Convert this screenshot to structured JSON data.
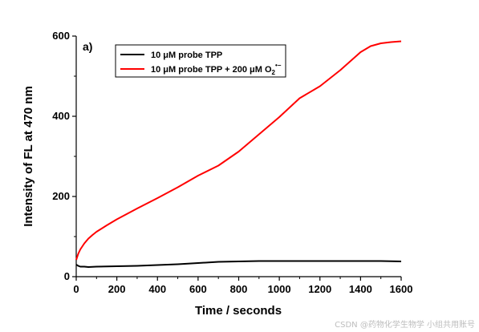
{
  "chart_data": {
    "type": "line",
    "panel_label": "a)",
    "xlabel": "Time / seconds",
    "ylabel": "Intensity of FL at 470 nm",
    "xlim": [
      0,
      1600
    ],
    "ylim": [
      0,
      600
    ],
    "x_ticks": [
      0,
      200,
      400,
      600,
      800,
      1000,
      1200,
      1400,
      1600
    ],
    "y_ticks": [
      0,
      200,
      400,
      600
    ],
    "grid": false,
    "legend_position": "top-left",
    "series": [
      {
        "name": "10 μM probe TPP",
        "color": "#000000",
        "x": [
          0,
          10,
          20,
          40,
          60,
          100,
          200,
          300,
          400,
          500,
          600,
          700,
          800,
          900,
          1000,
          1100,
          1200,
          1300,
          1400,
          1500,
          1600
        ],
        "y": [
          30,
          27,
          25,
          25,
          24,
          25,
          26,
          27,
          29,
          31,
          34,
          37,
          38,
          39,
          39,
          39,
          39,
          39,
          39,
          39,
          38
        ]
      },
      {
        "name": "10 μM probe TPP + 200 μM O2•−",
        "color": "#ff0000",
        "x": [
          0,
          10,
          20,
          40,
          60,
          80,
          100,
          150,
          200,
          300,
          400,
          500,
          600,
          700,
          800,
          900,
          1000,
          1100,
          1200,
          1300,
          1400,
          1450,
          1500,
          1550,
          1600
        ],
        "y": [
          42,
          57,
          68,
          83,
          95,
          104,
          112,
          128,
          143,
          170,
          196,
          223,
          252,
          277,
          312,
          355,
          398,
          445,
          475,
          515,
          560,
          575,
          582,
          585,
          587
        ]
      }
    ]
  },
  "legend": {
    "series1_label": "10 μM probe TPP",
    "series2_prefix": "10 μM probe TPP + 200 μM O",
    "series2_sub": "2",
    "series2_sup": "•−"
  },
  "watermark": "CSDN @药物化学生物学 小组共用账号"
}
